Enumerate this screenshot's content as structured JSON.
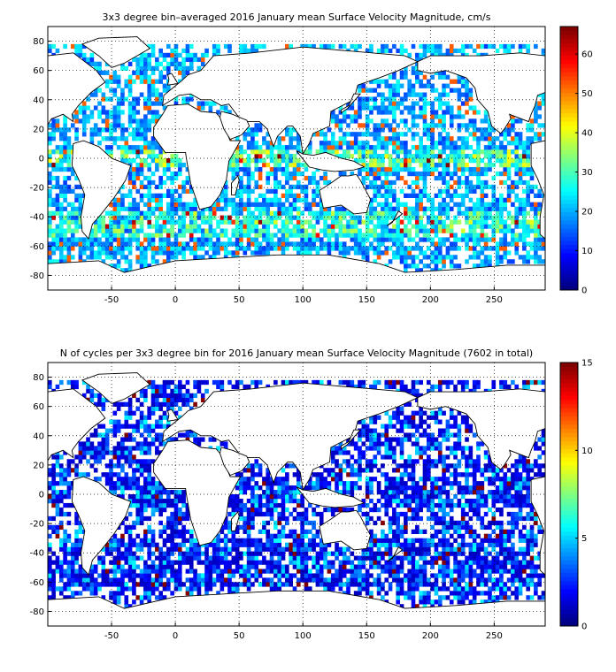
{
  "panels": [
    {
      "title": "3x3 degree bin–averaged 2016 January mean Surface Velocity Magnitude, cm/s",
      "colorbar": {
        "min": 0,
        "max": 67,
        "ticks": [
          "0",
          "10",
          "20",
          "30",
          "40",
          "50",
          "60"
        ]
      },
      "x_ticks": [
        "-50",
        "0",
        "50",
        "100",
        "150",
        "200",
        "250"
      ],
      "y_ticks": [
        "80",
        "60",
        "40",
        "20",
        "0",
        "-20",
        "-40",
        "-60",
        "-80"
      ]
    },
    {
      "title": "N of cycles per 3x3 degree bin for 2016 January mean Surface Velocity Magnitude (7602 in total)",
      "colorbar": {
        "min": 0,
        "max": 15,
        "ticks": [
          "0",
          "5",
          "10",
          "15"
        ]
      },
      "x_ticks": [
        "-50",
        "0",
        "50",
        "100",
        "150",
        "200",
        "250"
      ],
      "y_ticks": [
        "80",
        "60",
        "40",
        "20",
        "0",
        "-20",
        "-40",
        "-60",
        "-80"
      ]
    }
  ],
  "chart_data": [
    {
      "type": "heatmap",
      "title": "3x3 degree bin–averaged 2016 January mean Surface Velocity Magnitude, cm/s",
      "xlim": [
        -100,
        290
      ],
      "ylim": [
        -90,
        90
      ],
      "x_ticks": [
        -50,
        0,
        50,
        100,
        150,
        200,
        250
      ],
      "y_ticks": [
        -80,
        -60,
        -40,
        -20,
        0,
        20,
        40,
        60,
        80
      ],
      "bin_size_deg": 3,
      "color_range": [
        0,
        67
      ],
      "colormap": "jet",
      "grid": true,
      "colorbar_ticks": [
        0,
        10,
        20,
        30,
        40,
        50,
        60
      ],
      "colorbar_position": "right"
    },
    {
      "type": "heatmap",
      "title": "N of cycles per 3x3 degree bin for 2016 January mean Surface Velocity Magnitude (7602 in total)",
      "xlim": [
        -100,
        290
      ],
      "ylim": [
        -90,
        90
      ],
      "x_ticks": [
        -50,
        0,
        50,
        100,
        150,
        200,
        250
      ],
      "y_ticks": [
        -80,
        -60,
        -40,
        -20,
        0,
        20,
        40,
        60,
        80
      ],
      "bin_size_deg": 3,
      "color_range": [
        0,
        15
      ],
      "colormap": "jet",
      "grid": true,
      "total": 7602,
      "colorbar_ticks": [
        0,
        5,
        10,
        15
      ],
      "colorbar_position": "right"
    }
  ]
}
